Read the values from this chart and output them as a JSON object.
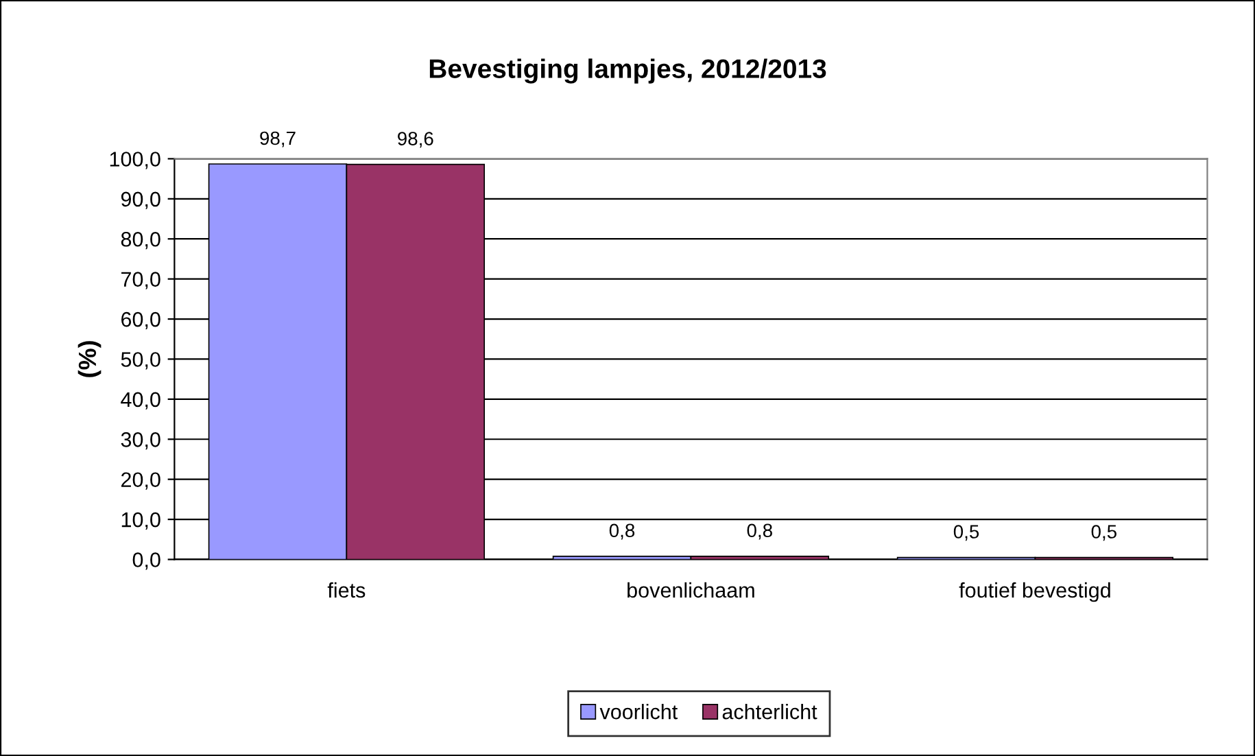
{
  "chart_data": {
    "type": "bar",
    "title": "Bevestiging lampjes, 2012/2013",
    "ylabel": "(%)",
    "categories": [
      "fiets",
      "bovenlichaam",
      "foutief bevestigd"
    ],
    "series": [
      {
        "name": "voorlicht",
        "color": "#9999ff",
        "values": [
          98.7,
          0.8,
          0.5
        ],
        "value_labels": [
          "98,7",
          "0,8",
          "0,5"
        ]
      },
      {
        "name": "achterlicht",
        "color": "#993366",
        "values": [
          98.6,
          0.8,
          0.5
        ],
        "value_labels": [
          "98,6",
          "0,8",
          "0,5"
        ]
      }
    ],
    "ylim": [
      0,
      100
    ],
    "yticks": [
      {
        "value": 0,
        "label": "0,0"
      },
      {
        "value": 10,
        "label": "10,0"
      },
      {
        "value": 20,
        "label": "20,0"
      },
      {
        "value": 30,
        "label": "30,0"
      },
      {
        "value": 40,
        "label": "40,0"
      },
      {
        "value": 50,
        "label": "50,0"
      },
      {
        "value": 60,
        "label": "60,0"
      },
      {
        "value": 70,
        "label": "70,0"
      },
      {
        "value": 80,
        "label": "80,0"
      },
      {
        "value": 90,
        "label": "90,0"
      },
      {
        "value": 100,
        "label": "100,0"
      }
    ],
    "grid": "y",
    "legend": "bottom"
  }
}
